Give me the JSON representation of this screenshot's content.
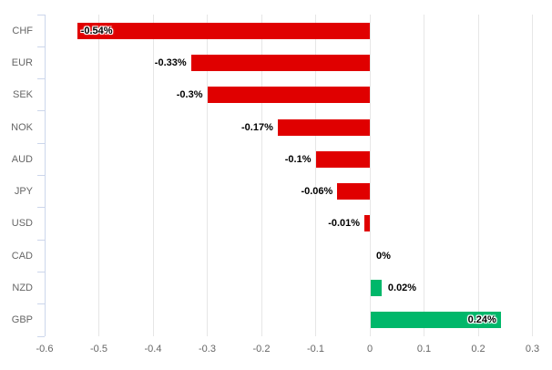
{
  "chart_data": {
    "type": "bar",
    "orientation": "horizontal",
    "title": "",
    "xlabel": "",
    "ylabel": "",
    "grid": true,
    "legend": false,
    "categories": [
      "CHF",
      "EUR",
      "SEK",
      "NOK",
      "AUD",
      "JPY",
      "USD",
      "CAD",
      "NZD",
      "GBP"
    ],
    "values": [
      -0.54,
      -0.33,
      -0.3,
      -0.17,
      -0.1,
      -0.06,
      -0.01,
      0,
      0.02,
      0.24
    ],
    "data_labels": [
      "-0.54%",
      "-0.33%",
      "-0.3%",
      "-0.17%",
      "-0.1%",
      "-0.06%",
      "-0.01%",
      "0%",
      "0.02%",
      "0.24%"
    ],
    "label_placements": [
      "inside-start",
      "outside",
      "outside",
      "outside",
      "outside",
      "outside",
      "outside",
      "outside-positive",
      "outside-positive",
      "inside-end"
    ],
    "x_ticks": [
      -0.6,
      -0.5,
      -0.4,
      -0.3,
      -0.2,
      -0.1,
      0,
      0.1,
      0.2,
      0.3
    ],
    "x_tick_labels": [
      "-0.6",
      "-0.5",
      "-0.4",
      "-0.3",
      "-0.2",
      "-0.1",
      "0",
      "0.1",
      "0.2",
      "0.3"
    ],
    "xlim": [
      -0.605,
      0.335
    ],
    "colors": {
      "negative_bar": "#e00000",
      "positive_bar": "#00b76a",
      "grid_line": "#e6e6e6",
      "axis_line": "#ccd6eb",
      "axis_label_text": "#666666",
      "data_label_text": "#000000",
      "background": "#ffffff"
    }
  }
}
